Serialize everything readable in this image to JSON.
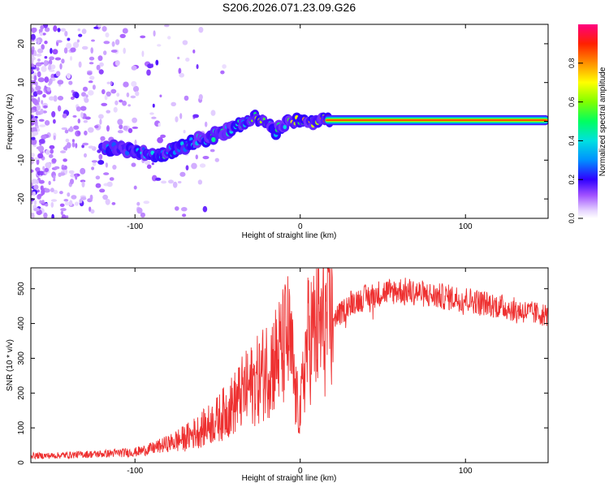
{
  "title": "S206.2026.071.23.09.G26",
  "chart_data": [
    {
      "type": "heatmap",
      "name": "spectrogram",
      "xlabel": "Height of straight line (km)",
      "ylabel": "Frequency (Hz)",
      "xlim": [
        -163,
        150
      ],
      "ylim": [
        -25,
        25
      ],
      "xticks": [
        -100,
        0,
        100
      ],
      "yticks": [
        -20,
        -10,
        0,
        10,
        20
      ],
      "grid": false,
      "colorbar": {
        "label": "Normalized spectral amplitude",
        "range": [
          0,
          1
        ],
        "ticks": [
          0.0,
          0.2,
          0.4,
          0.6,
          0.8
        ],
        "tick_labels": [
          "0.0",
          "0.2",
          "0.4",
          "0.6",
          "0.8"
        ],
        "colormap": "rainbow (white-violet to red-magenta)"
      },
      "ridge": {
        "description": "signal tone frequency vs height",
        "x": [
          -113,
          -105,
          -95,
          -85,
          -75,
          -65,
          -55,
          -45,
          -38,
          -32,
          -28,
          -24,
          -20,
          -15,
          -10,
          -5,
          0,
          5,
          10,
          15,
          30,
          60,
          100,
          150
        ],
        "freq": [
          -7,
          -7.5,
          -8,
          -9,
          -7,
          -5.5,
          -4,
          -2.5,
          -1,
          0,
          0.8,
          0.5,
          -1,
          -2.5,
          -1,
          -0.3,
          0,
          -0.2,
          0,
          0.3,
          0.3,
          0.3,
          0.3,
          0.3
        ],
        "amplitude": [
          0.3,
          0.35,
          0.4,
          0.45,
          0.45,
          0.4,
          0.5,
          0.45,
          0.4,
          0.5,
          0.8,
          0.6,
          0.5,
          0.5,
          0.55,
          0.7,
          0.8,
          0.85,
          0.9,
          1.0,
          1.0,
          1.0,
          1.0,
          1.0
        ]
      }
    },
    {
      "type": "line",
      "name": "snr",
      "xlabel": "Height of straight line (km)",
      "ylabel": "SNR (10 * v/v)",
      "xlim": [
        -163,
        150
      ],
      "ylim": [
        0,
        560
      ],
      "xticks": [
        -100,
        0,
        100
      ],
      "yticks": [
        0,
        100,
        200,
        300,
        400,
        500
      ],
      "grid": false,
      "color": "#ee3030",
      "series": [
        {
          "name": "SNR",
          "x": [
            -163,
            -150,
            -140,
            -130,
            -120,
            -110,
            -100,
            -90,
            -80,
            -70,
            -60,
            -50,
            -40,
            -35,
            -30,
            -25,
            -20,
            -15,
            -10,
            -8,
            -5,
            -3,
            0,
            3,
            5,
            10,
            15,
            20,
            25,
            30,
            40,
            50,
            60,
            70,
            80,
            90,
            100,
            110,
            120,
            130,
            140,
            150
          ],
          "y": [
            20,
            20,
            22,
            24,
            25,
            28,
            30,
            40,
            55,
            70,
            95,
            125,
            170,
            200,
            220,
            240,
            275,
            300,
            330,
            370,
            300,
            195,
            140,
            300,
            360,
            380,
            400,
            415,
            430,
            460,
            475,
            490,
            495,
            490,
            480,
            475,
            470,
            460,
            450,
            440,
            430,
            425
          ]
        }
      ]
    }
  ]
}
